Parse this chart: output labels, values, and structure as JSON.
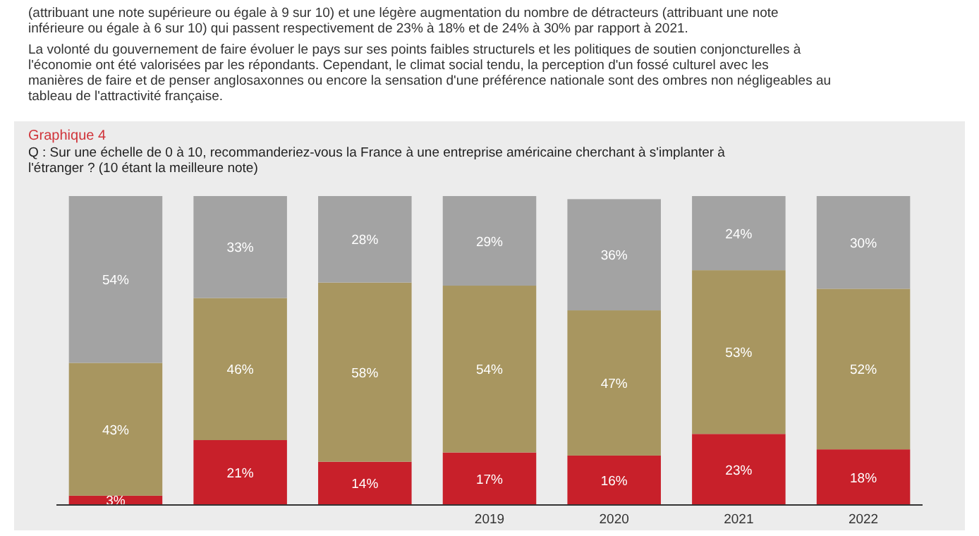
{
  "chart_data": {
    "type": "bar",
    "stacked": true,
    "tick_labels": "x",
    "title": "Graphique 4",
    "subtitle": "Q : Sur une échelle de 0 à 10, recommanderiez-vous la France à une entreprise américaine cherchant à s'implanter à l'étranger ? (10 étant la meilleure note)",
    "annotations": [
      "(attribuant une note supérieure ou égale à 9 sur 10) et une légère augmentation du nombre de détracteurs (attribuant une note inférieure ou égale à 6 sur 10) qui passent respectivement de 23% à 18% et de 24% à 30% par rapport à 2021.",
      "La volonté du gouvernement de faire évoluer le pays sur ses points faibles structurels et les politiques de soutien conjoncturelles à l'économie ont été valorisées par les répondants. Cependant, le climat social tendu, la perception d'un fossé culturel avec les manières de faire et de penser anglosaxonnes ou encore la sensation d'une préférence nationale sont des ombres non négligeables au tableau de l'attractivité française."
    ],
    "categories": [
      null,
      null,
      null,
      "2019",
      "2020",
      "2021",
      "2022"
    ],
    "ylim": [
      0,
      100
    ],
    "series": [
      {
        "color": "#c8202a",
        "values": [
          3,
          21,
          14,
          17,
          16,
          23,
          18
        ],
        "value_labels": [
          "3%",
          "21%",
          "14%",
          "17%",
          "16%",
          "23%",
          "18%"
        ]
      },
      {
        "color": "#a89660",
        "values": [
          43,
          46,
          58,
          54,
          47,
          53,
          52
        ],
        "value_labels": [
          "43%",
          "46%",
          "58%",
          "54%",
          "47%",
          "53%",
          "52%"
        ]
      },
      {
        "color": "#a3a3a3",
        "values": [
          54,
          33,
          28,
          29,
          36,
          24,
          30
        ],
        "value_labels": [
          "54%",
          "33%",
          "28%",
          "29%",
          "36%",
          "24%",
          "30%"
        ]
      }
    ]
  }
}
